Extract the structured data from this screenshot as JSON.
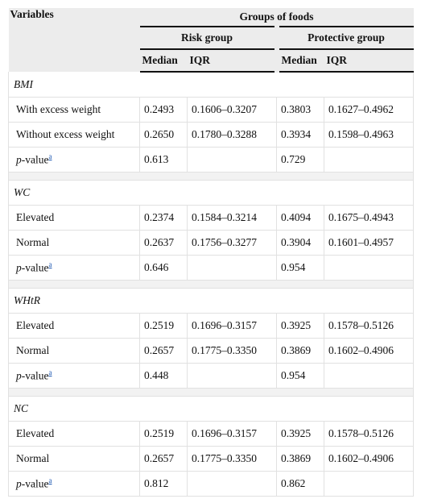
{
  "header": {
    "variables": "Variables",
    "groups": "Groups of foods",
    "risk_group": "Risk group",
    "protective_group": "Protective group",
    "median": "Median",
    "iqr": "IQR"
  },
  "sections": [
    {
      "title": "BMI",
      "rows": [
        {
          "label": "With excess weight",
          "risk_median": "0.2493",
          "risk_iqr": "0.1606–0.3207",
          "prot_median": "0.3803",
          "prot_iqr": "0.1627–0.4962"
        },
        {
          "label": "Without excess weight",
          "risk_median": "0.2650",
          "risk_iqr": "0.1780–0.3288",
          "prot_median": "0.3934",
          "prot_iqr": "0.1598–0.4963"
        }
      ],
      "pvalue": {
        "p": "p",
        "rest": "-value",
        "sup": "a",
        "risk": "0.613",
        "prot": "0.729"
      }
    },
    {
      "title": "WC",
      "rows": [
        {
          "label": "Elevated",
          "risk_median": "0.2374",
          "risk_iqr": "0.1584–0.3214",
          "prot_median": "0.4094",
          "prot_iqr": "0.1675–0.4943"
        },
        {
          "label": "Normal",
          "risk_median": "0.2637",
          "risk_iqr": "0.1756–0.3277",
          "prot_median": "0.3904",
          "prot_iqr": "0.1601–0.4957"
        }
      ],
      "pvalue": {
        "p": "p",
        "rest": "-value",
        "sup": "a",
        "risk": "0.646",
        "prot": "0.954"
      }
    },
    {
      "title": "WHtR",
      "rows": [
        {
          "label": "Elevated",
          "risk_median": "0.2519",
          "risk_iqr": "0.1696–0.3157",
          "prot_median": "0.3925",
          "prot_iqr": "0.1578–0.5126"
        },
        {
          "label": "Normal",
          "risk_median": "0.2657",
          "risk_iqr": "0.1775–0.3350",
          "prot_median": "0.3869",
          "prot_iqr": "0.1602–0.4906"
        }
      ],
      "pvalue": {
        "p": "p",
        "rest": "-value",
        "sup": "a",
        "risk": "0.448",
        "prot": "0.954"
      }
    },
    {
      "title": "NC",
      "rows": [
        {
          "label": "Elevated",
          "risk_median": "0.2519",
          "risk_iqr": "0.1696–0.3157",
          "prot_median": "0.3925",
          "prot_iqr": "0.1578–0.5126"
        },
        {
          "label": "Normal",
          "risk_median": "0.2657",
          "risk_iqr": "0.1775–0.3350",
          "prot_median": "0.3869",
          "prot_iqr": "0.1602–0.4906"
        }
      ],
      "pvalue": {
        "p": "p",
        "rest": "-value",
        "sup": "a",
        "risk": "0.812",
        "prot": "0.862"
      }
    }
  ]
}
